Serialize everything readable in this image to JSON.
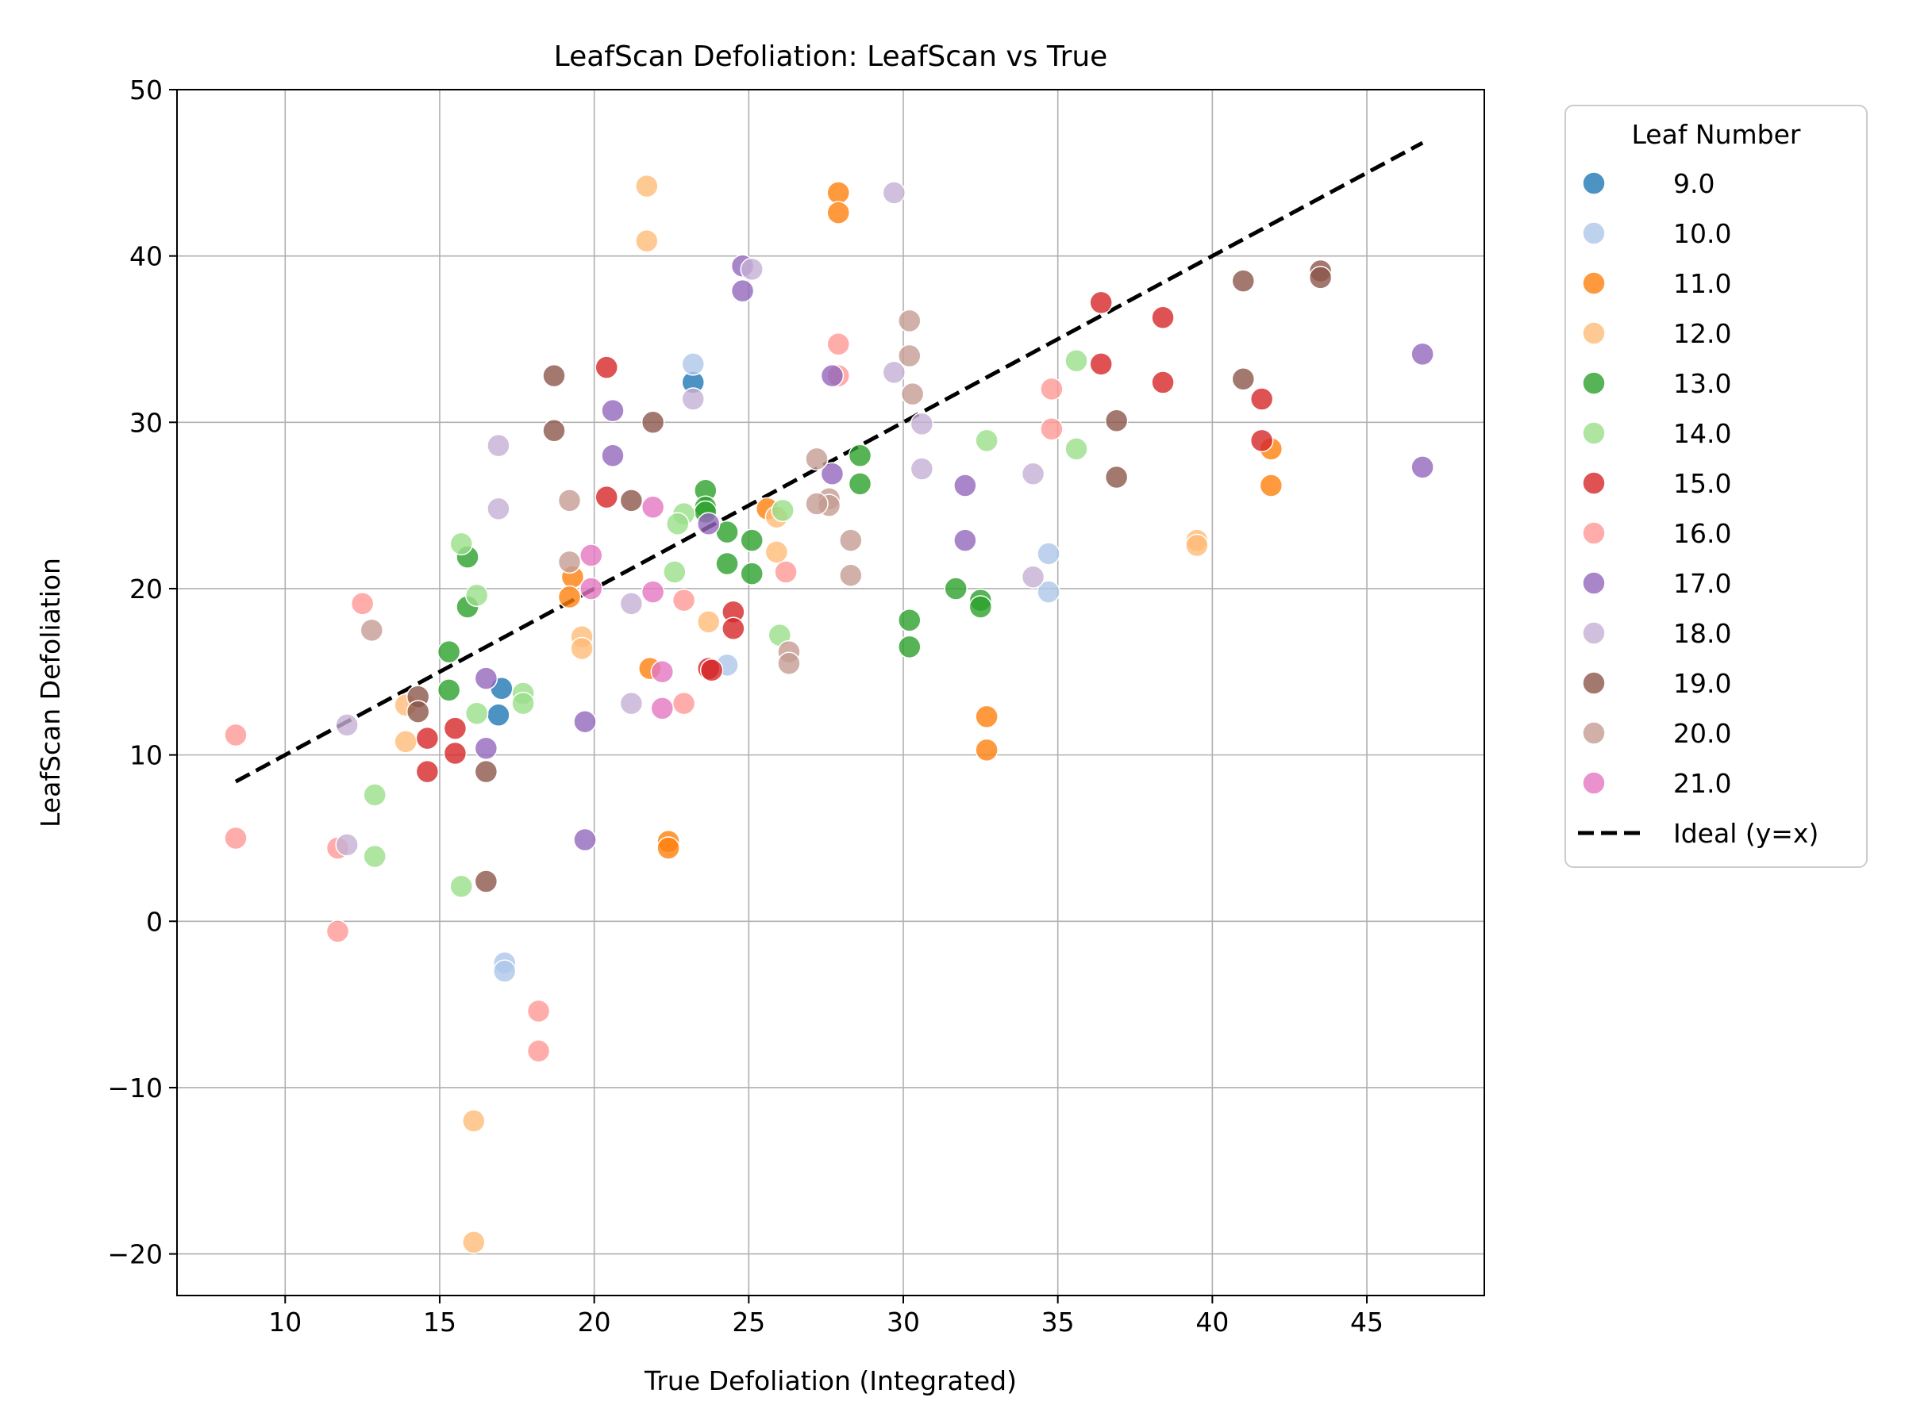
{
  "chart_data": {
    "type": "scatter",
    "title": "LeafScan Defoliation: LeafScan vs True",
    "xlabel": "True Defoliation (Integrated)",
    "ylabel": "LeafScan Defoliation",
    "xlim": [
      6.5,
      48.8
    ],
    "ylim": [
      -22.5,
      50
    ],
    "xticks": [
      10,
      15,
      20,
      25,
      30,
      35,
      40,
      45
    ],
    "xtick_labels": [
      "10",
      "15",
      "20",
      "25",
      "30",
      "35",
      "40",
      "45"
    ],
    "yticks": [
      -20,
      -10,
      0,
      10,
      20,
      30,
      40,
      50
    ],
    "ytick_labels": [
      "−20",
      "−10",
      "0",
      "10",
      "20",
      "30",
      "40",
      "50"
    ],
    "grid": true,
    "legend": {
      "title": "Leaf Number",
      "placement": "outside-right"
    },
    "series": [
      {
        "name": "9.0",
        "color": "#1f77b4",
        "points": [
          [
            23.2,
            32.4
          ],
          [
            17.0,
            14.0
          ],
          [
            16.9,
            12.4
          ]
        ]
      },
      {
        "name": "10.0",
        "color": "#aec7e8",
        "points": [
          [
            23.2,
            33.5
          ],
          [
            34.7,
            22.1
          ],
          [
            34.7,
            19.8
          ],
          [
            24.3,
            15.4
          ],
          [
            17.1,
            -2.5
          ],
          [
            17.1,
            -3.0
          ]
        ]
      },
      {
        "name": "11.0",
        "color": "#ff7f0e",
        "points": [
          [
            27.9,
            43.8
          ],
          [
            27.9,
            42.6
          ],
          [
            41.9,
            28.4
          ],
          [
            41.9,
            26.2
          ],
          [
            25.6,
            24.8
          ],
          [
            19.3,
            20.7
          ],
          [
            19.2,
            19.5
          ],
          [
            21.8,
            15.2
          ],
          [
            32.7,
            12.3
          ],
          [
            32.7,
            10.3
          ],
          [
            22.4,
            4.8
          ],
          [
            22.4,
            4.4
          ]
        ]
      },
      {
        "name": "12.0",
        "color": "#ffbb78",
        "points": [
          [
            21.7,
            44.2
          ],
          [
            21.7,
            40.9
          ],
          [
            25.9,
            24.3
          ],
          [
            25.9,
            22.2
          ],
          [
            39.5,
            22.9
          ],
          [
            39.5,
            22.6
          ],
          [
            23.7,
            18.0
          ],
          [
            19.6,
            17.1
          ],
          [
            19.6,
            16.4
          ],
          [
            13.9,
            13.0
          ],
          [
            13.9,
            10.8
          ],
          [
            16.1,
            -12.0
          ],
          [
            16.1,
            -19.3
          ]
        ]
      },
      {
        "name": "13.0",
        "color": "#2ca02c",
        "points": [
          [
            23.6,
            25.9
          ],
          [
            23.6,
            24.9
          ],
          [
            23.6,
            24.6
          ],
          [
            28.6,
            28.0
          ],
          [
            28.6,
            26.3
          ],
          [
            24.3,
            23.4
          ],
          [
            25.1,
            22.9
          ],
          [
            24.3,
            21.5
          ],
          [
            25.1,
            20.9
          ],
          [
            15.9,
            21.9
          ],
          [
            15.9,
            18.9
          ],
          [
            31.7,
            20.0
          ],
          [
            32.5,
            19.3
          ],
          [
            32.5,
            18.9
          ],
          [
            30.2,
            18.1
          ],
          [
            30.2,
            16.5
          ],
          [
            15.3,
            16.2
          ],
          [
            15.3,
            13.9
          ]
        ]
      },
      {
        "name": "14.0",
        "color": "#98df8a",
        "points": [
          [
            35.6,
            33.7
          ],
          [
            35.6,
            28.4
          ],
          [
            32.7,
            28.9
          ],
          [
            26.1,
            24.7
          ],
          [
            22.9,
            24.5
          ],
          [
            22.7,
            23.9
          ],
          [
            22.6,
            21.0
          ],
          [
            15.7,
            22.7
          ],
          [
            16.2,
            19.6
          ],
          [
            26.0,
            17.2
          ],
          [
            17.7,
            13.7
          ],
          [
            17.7,
            13.1
          ],
          [
            16.2,
            12.5
          ],
          [
            12.9,
            7.6
          ],
          [
            12.9,
            3.9
          ],
          [
            15.7,
            2.1
          ]
        ]
      },
      {
        "name": "15.0",
        "color": "#d62728",
        "points": [
          [
            36.4,
            37.2
          ],
          [
            38.4,
            36.3
          ],
          [
            36.4,
            33.5
          ],
          [
            38.4,
            32.4
          ],
          [
            41.6,
            31.4
          ],
          [
            41.6,
            28.9
          ],
          [
            20.4,
            33.3
          ],
          [
            20.4,
            25.5
          ],
          [
            24.5,
            18.6
          ],
          [
            24.5,
            17.6
          ],
          [
            23.7,
            15.2
          ],
          [
            23.8,
            15.1
          ],
          [
            15.5,
            11.6
          ],
          [
            14.6,
            11.0
          ],
          [
            15.5,
            10.1
          ],
          [
            14.6,
            9.0
          ]
        ]
      },
      {
        "name": "16.0",
        "color": "#ff9896",
        "points": [
          [
            27.9,
            34.7
          ],
          [
            27.9,
            32.8
          ],
          [
            34.8,
            32.0
          ],
          [
            34.8,
            29.6
          ],
          [
            26.2,
            21.0
          ],
          [
            22.9,
            19.3
          ],
          [
            22.9,
            13.1
          ],
          [
            12.5,
            19.1
          ],
          [
            8.4,
            11.2
          ],
          [
            8.4,
            5.0
          ],
          [
            11.7,
            4.4
          ],
          [
            11.7,
            -0.6
          ],
          [
            18.2,
            -5.4
          ],
          [
            18.2,
            -7.8
          ]
        ]
      },
      {
        "name": "17.0",
        "color": "#9467bd",
        "points": [
          [
            24.8,
            39.4
          ],
          [
            24.8,
            37.9
          ],
          [
            27.7,
            32.8
          ],
          [
            20.6,
            30.7
          ],
          [
            20.6,
            28.0
          ],
          [
            27.7,
            26.9
          ],
          [
            23.7,
            23.9
          ],
          [
            32.0,
            26.2
          ],
          [
            32.0,
            22.9
          ],
          [
            46.8,
            34.1
          ],
          [
            46.8,
            27.3
          ],
          [
            16.5,
            14.6
          ],
          [
            16.5,
            10.4
          ],
          [
            19.7,
            12.0
          ],
          [
            19.7,
            4.9
          ]
        ]
      },
      {
        "name": "18.0",
        "color": "#c5b0d5",
        "points": [
          [
            25.1,
            39.2
          ],
          [
            29.7,
            43.8
          ],
          [
            29.7,
            33.0
          ],
          [
            30.6,
            29.9
          ],
          [
            30.6,
            27.2
          ],
          [
            23.2,
            31.4
          ],
          [
            16.9,
            28.6
          ],
          [
            16.9,
            24.8
          ],
          [
            34.2,
            26.9
          ],
          [
            34.2,
            20.7
          ],
          [
            21.2,
            19.1
          ],
          [
            21.2,
            13.1
          ],
          [
            12.0,
            11.8
          ],
          [
            12.0,
            4.6
          ]
        ]
      },
      {
        "name": "19.0",
        "color": "#8c564b",
        "points": [
          [
            43.5,
            39.1
          ],
          [
            43.5,
            38.7
          ],
          [
            41.0,
            38.5
          ],
          [
            41.0,
            32.6
          ],
          [
            36.9,
            30.1
          ],
          [
            36.9,
            26.7
          ],
          [
            18.7,
            32.8
          ],
          [
            18.7,
            29.5
          ],
          [
            21.9,
            30.0
          ],
          [
            21.2,
            25.3
          ],
          [
            14.3,
            13.5
          ],
          [
            14.3,
            12.6
          ],
          [
            16.5,
            9.0
          ],
          [
            16.5,
            2.4
          ]
        ]
      },
      {
        "name": "20.0",
        "color": "#c49c94",
        "points": [
          [
            30.2,
            36.1
          ],
          [
            30.2,
            34.0
          ],
          [
            30.3,
            31.7
          ],
          [
            27.2,
            27.8
          ],
          [
            27.6,
            25.4
          ],
          [
            27.6,
            25.0
          ],
          [
            27.2,
            25.1
          ],
          [
            19.2,
            25.3
          ],
          [
            19.2,
            21.6
          ],
          [
            28.3,
            22.9
          ],
          [
            28.3,
            20.8
          ],
          [
            26.3,
            16.2
          ],
          [
            26.3,
            15.5
          ],
          [
            12.8,
            17.5
          ]
        ]
      },
      {
        "name": "21.0",
        "color": "#e377c2",
        "points": [
          [
            21.9,
            24.9
          ],
          [
            19.9,
            22.0
          ],
          [
            19.9,
            20.0
          ],
          [
            21.9,
            19.8
          ],
          [
            22.2,
            15.0
          ],
          [
            22.2,
            12.8
          ]
        ]
      }
    ],
    "reference_line": {
      "name": "Ideal (y=x)",
      "color": "#000000",
      "x": [
        8.4,
        46.8
      ],
      "y": [
        8.4,
        46.8
      ],
      "style": "dashed"
    }
  }
}
